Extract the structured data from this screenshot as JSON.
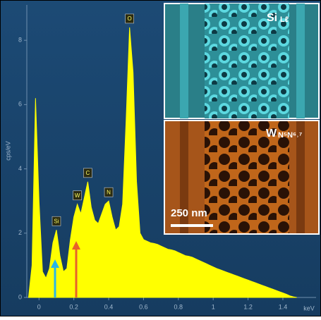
{
  "chart_data": {
    "type": "area",
    "y_label": "cps/eV",
    "x_label": "keV",
    "color": "#ffff00",
    "x": [
      -0.06,
      -0.04,
      -0.02,
      0,
      0.02,
      0.04,
      0.06,
      0.08,
      0.1,
      0.12,
      0.14,
      0.16,
      0.18,
      0.2,
      0.22,
      0.24,
      0.26,
      0.28,
      0.3,
      0.32,
      0.34,
      0.36,
      0.38,
      0.4,
      0.42,
      0.44,
      0.46,
      0.48,
      0.5,
      0.52,
      0.54,
      0.56,
      0.58,
      0.6,
      0.62,
      0.64,
      0.66,
      0.68,
      0.7,
      0.72,
      0.74,
      0.76,
      0.78,
      0.8,
      0.82,
      0.84,
      0.86,
      0.88,
      0.9,
      0.92,
      0.94,
      0.96,
      0.98,
      1,
      1.02,
      1.04,
      1.06,
      1.08,
      1.1,
      1.12,
      1.14,
      1.16,
      1.18,
      1.2,
      1.22,
      1.24,
      1.26,
      1.28,
      1.3,
      1.32,
      1.34,
      1.36,
      1.38,
      1.4,
      1.42,
      1.44,
      1.46,
      1.48
    ],
    "values": [
      0,
      1.0,
      6.2,
      3.0,
      0.8,
      0.6,
      0.9,
      1.7,
      2.1,
      1.3,
      0.8,
      0.9,
      1.8,
      2.5,
      2.9,
      2.6,
      3.1,
      3.6,
      2.8,
      2.4,
      2.3,
      2.6,
      2.9,
      3.0,
      2.5,
      2.1,
      2.2,
      2.9,
      5.5,
      8.4,
      7.0,
      3.6,
      2.0,
      1.8,
      1.75,
      1.7,
      1.68,
      1.65,
      1.6,
      1.55,
      1.5,
      1.48,
      1.45,
      1.4,
      1.35,
      1.3,
      1.28,
      1.25,
      1.2,
      1.15,
      1.1,
      1.05,
      1.0,
      0.95,
      0.9,
      0.86,
      0.82,
      0.78,
      0.74,
      0.7,
      0.66,
      0.62,
      0.58,
      0.54,
      0.5,
      0.46,
      0.42,
      0.38,
      0.34,
      0.3,
      0.26,
      0.22,
      0.18,
      0.14,
      0.1,
      0.05,
      0.02,
      0
    ],
    "xlim": [
      -0.07,
      1.55
    ],
    "ylim": [
      0,
      9.1
    ],
    "xticks": [
      0,
      0.2,
      0.4,
      0.6,
      0.8,
      1,
      1.2,
      1.4
    ],
    "yticks": [
      0,
      2,
      4,
      6,
      8
    ],
    "annotations": [
      {
        "text": "Si",
        "x": 0.1
      },
      {
        "text": "W",
        "x": 0.22
      },
      {
        "text": "C",
        "x": 0.28
      },
      {
        "text": "N",
        "x": 0.4
      },
      {
        "text": "O",
        "x": 0.52
      }
    ],
    "insets": [
      {
        "label": "Si",
        "sublabel": "Lℓ"
      },
      {
        "label": "W",
        "sublabel": "N⁵N⁶˒⁷",
        "scale_bar": "250 nm"
      }
    ]
  }
}
